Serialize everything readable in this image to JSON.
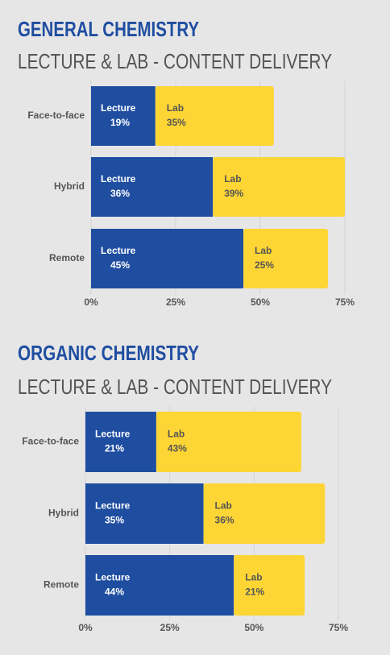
{
  "chart_data": [
    {
      "type": "stacked-bar-horizontal",
      "title": "GENERAL CHEMISTRY",
      "subtitle": "LECTURE & LAB - CONTENT DELIVERY",
      "categories": [
        "Face-to-face",
        "Hybrid",
        "Remote"
      ],
      "series": [
        {
          "name": "Lecture",
          "color": "#1f4ea1",
          "values": [
            19,
            36,
            45
          ],
          "value_labels": [
            "19%",
            "36%",
            "45%"
          ]
        },
        {
          "name": "Lab",
          "color": "#fdd535",
          "values": [
            35,
            39,
            25
          ],
          "value_labels": [
            "35%",
            "39%",
            "25%"
          ]
        }
      ],
      "xlim": [
        0,
        75
      ],
      "xticks": [
        {
          "value": 0,
          "label": "0%"
        },
        {
          "value": 25,
          "label": "25%"
        },
        {
          "value": 50,
          "label": "50%"
        },
        {
          "value": 75,
          "label": "75%"
        }
      ],
      "grid": true
    },
    {
      "type": "stacked-bar-horizontal",
      "title": "ORGANIC CHEMISTRY",
      "subtitle": "LECTURE & LAB - CONTENT DELIVERY",
      "categories": [
        "Face-to-face",
        "Hybrid",
        "Remote"
      ],
      "series": [
        {
          "name": "Lecture",
          "color": "#1f4ea1",
          "values": [
            21,
            35,
            44
          ],
          "value_labels": [
            "21%",
            "35%",
            "44%"
          ]
        },
        {
          "name": "Lab",
          "color": "#fdd535",
          "values": [
            43,
            36,
            21
          ],
          "value_labels": [
            "43%",
            "36%",
            "21%"
          ]
        }
      ],
      "xlim": [
        0,
        75
      ],
      "xticks": [
        {
          "value": 0,
          "label": "0%"
        },
        {
          "value": 25,
          "label": "25%"
        },
        {
          "value": 50,
          "label": "50%"
        },
        {
          "value": 75,
          "label": "75%"
        }
      ],
      "grid": true
    }
  ]
}
